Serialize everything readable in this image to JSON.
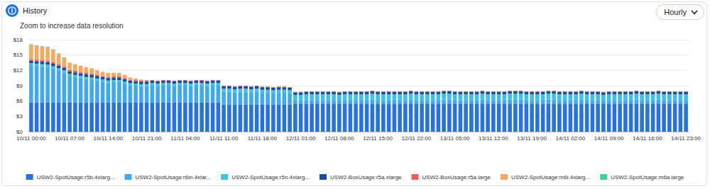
{
  "chart_data": {
    "type": "bar",
    "title": "History",
    "subtitle": "Zoom to increase data resolution",
    "annotations": [
      "Hourly"
    ],
    "stacked": true,
    "grid": true,
    "legend": "bottom",
    "ylim": [
      0,
      18
    ],
    "yticks": [
      {
        "value": 0,
        "label": "$0"
      },
      {
        "value": 3,
        "label": "$3"
      },
      {
        "value": 6,
        "label": "$6"
      },
      {
        "value": 9,
        "label": "$9"
      },
      {
        "value": 12,
        "label": "$12"
      },
      {
        "value": 15,
        "label": "$15"
      },
      {
        "value": 18,
        "label": "$18"
      }
    ],
    "categories": [
      "10/11 00:00",
      null,
      null,
      null,
      null,
      null,
      null,
      "10/11 07:00",
      null,
      null,
      null,
      null,
      null,
      null,
      "10/11 14:00",
      null,
      null,
      null,
      null,
      null,
      null,
      "10/11 21:00",
      null,
      null,
      null,
      null,
      null,
      null,
      "11/11 04:00",
      null,
      null,
      null,
      null,
      null,
      null,
      "11/11 11:00",
      null,
      null,
      null,
      null,
      null,
      null,
      "11/11 18:00",
      null,
      null,
      null,
      null,
      null,
      null,
      "12/11 01:00",
      null,
      null,
      null,
      null,
      null,
      null,
      "12/11 08:00",
      null,
      null,
      null,
      null,
      null,
      null,
      "12/11 15:00",
      null,
      null,
      null,
      null,
      null,
      null,
      "12/11 22:00",
      null,
      null,
      null,
      null,
      null,
      null,
      "13/11 05:00",
      null,
      null,
      null,
      null,
      null,
      null,
      "13/11 12:00",
      null,
      null,
      null,
      null,
      null,
      null,
      "13/11 19:00",
      null,
      null,
      null,
      null,
      null,
      null,
      "14/11 02:00",
      null,
      null,
      null,
      null,
      null,
      null,
      "14/11 09:00",
      null,
      null,
      null,
      null,
      null,
      null,
      "14/11 16:00",
      null,
      null,
      null,
      null,
      null,
      null,
      "14/11 23:00"
    ],
    "series": [
      {
        "name": "USW2-SpotUsage:r5b.4xlarg...",
        "color": "#2673df",
        "values": [
          5.7,
          5.7,
          5.7,
          5.7,
          5.7,
          5.7,
          5.7,
          5.7,
          5.7,
          5.7,
          5.7,
          5.7,
          5.7,
          5.7,
          5.7,
          5.7,
          5.7,
          5.7,
          5.7,
          5.7,
          5.7,
          5.7,
          5.7,
          5.7,
          5.7,
          5.7,
          5.7,
          5.7,
          5.7,
          5.7,
          5.7,
          5.7,
          5.7,
          5.7,
          5.7,
          5.3,
          5.3,
          5.3,
          5.3,
          5.3,
          5.3,
          5.3,
          5.3,
          5.3,
          5.3,
          5.3,
          5.3,
          5.3,
          5.5,
          5.5,
          5.5,
          5.5,
          5.5,
          5.5,
          5.5,
          5.5,
          5.5,
          5.5,
          5.5,
          5.5,
          5.5,
          5.5,
          5.5,
          5.5,
          5.5,
          5.5,
          5.5,
          5.5,
          5.5,
          5.5,
          5.5,
          5.5,
          5.5,
          5.5,
          5.5,
          5.5,
          5.5,
          5.5,
          5.5,
          5.5,
          5.5,
          5.5,
          5.5,
          5.5,
          5.5,
          5.5,
          5.5,
          5.5,
          5.5,
          5.5,
          5.5,
          5.5,
          5.5,
          5.5,
          5.5,
          5.5,
          5.5,
          5.5,
          5.5,
          5.5,
          5.5,
          5.5,
          5.5,
          5.5,
          5.5,
          5.5,
          5.5,
          5.5,
          5.5,
          5.5,
          5.5,
          5.5,
          5.5,
          5.5,
          5.5,
          5.5,
          5.5,
          5.5,
          5.5,
          5.5
        ]
      },
      {
        "name": "USW2-SpotUsage:r6in.4xlar...",
        "color": "#3ea8f0",
        "values": [
          7.3,
          7.2,
          7.1,
          7.0,
          6.7,
          6.3,
          5.9,
          5.2,
          5.0,
          4.8,
          4.6,
          4.5,
          4.3,
          4.1,
          3.9,
          4.0,
          4.0,
          3.7,
          3.4,
          3.3,
          3.2,
          3.2,
          3.3,
          3.2,
          3.3,
          3.3,
          3.2,
          3.3,
          3.3,
          3.2,
          3.3,
          3.3,
          3.2,
          3.3,
          3.3,
          2.5,
          2.5,
          2.4,
          2.5,
          2.5,
          2.4,
          2.5,
          2.3,
          2.3,
          2.2,
          2.3,
          2.3,
          2.2,
          0.6,
          0.6,
          0.7,
          0.7,
          0.7,
          0.7,
          0.7,
          0.7,
          0.6,
          0.7,
          0.7,
          0.7,
          0.7,
          0.7,
          0.8,
          0.7,
          0.7,
          0.7,
          0.7,
          0.7,
          0.7,
          0.8,
          0.7,
          0.7,
          0.7,
          0.7,
          0.7,
          0.8,
          0.8,
          0.7,
          0.7,
          0.7,
          0.7,
          0.7,
          0.8,
          0.7,
          0.7,
          0.7,
          0.7,
          0.8,
          0.8,
          0.8,
          0.7,
          0.7,
          0.7,
          0.7,
          0.8,
          0.8,
          0.7,
          0.7,
          0.7,
          0.7,
          0.8,
          0.7,
          0.7,
          0.7,
          0.6,
          0.7,
          0.7,
          0.7,
          0.7,
          0.7,
          0.8,
          0.7,
          0.7,
          0.7,
          0.8,
          0.7,
          0.7,
          0.7,
          0.7,
          0.7
        ]
      },
      {
        "name": "USW2-SpotUsage:r5n.4xlarg...",
        "color": "#3cc3e4",
        "values": [
          0.4,
          0.4,
          0.4,
          0.4,
          0.4,
          0.4,
          0.4,
          0.4,
          0.4,
          0.4,
          0.4,
          0.4,
          0.4,
          0.4,
          0.4,
          0.4,
          0.4,
          0.4,
          0.4,
          0.4,
          0.4,
          0.4,
          0.5,
          0.5,
          0.5,
          0.5,
          0.5,
          0.5,
          0.5,
          0.5,
          0.5,
          0.5,
          0.5,
          0.5,
          0.5,
          0.6,
          0.6,
          0.6,
          0.6,
          0.6,
          0.6,
          0.6,
          0.6,
          0.6,
          0.6,
          0.6,
          0.6,
          0.6,
          1.1,
          1.1,
          1.1,
          1.1,
          1.1,
          1.1,
          1.1,
          1.1,
          1.1,
          1.1,
          1.1,
          1.1,
          1.1,
          1.1,
          1.1,
          1.1,
          1.1,
          1.1,
          1.1,
          1.1,
          1.1,
          1.1,
          1.1,
          1.1,
          1.1,
          1.1,
          1.1,
          1.1,
          1.1,
          1.1,
          1.1,
          1.1,
          1.1,
          1.1,
          1.1,
          1.1,
          1.1,
          1.1,
          1.1,
          1.1,
          1.1,
          1.1,
          1.1,
          1.1,
          1.1,
          1.1,
          1.1,
          1.1,
          1.1,
          1.1,
          1.1,
          1.1,
          1.1,
          1.1,
          1.1,
          1.1,
          1.1,
          1.1,
          1.1,
          1.1,
          1.1,
          1.1,
          1.1,
          1.1,
          1.1,
          1.1,
          1.1,
          1.1,
          1.1,
          1.1,
          1.1,
          1.1
        ]
      },
      {
        "name": "USW2-BoxUsage:r5a.xlarge",
        "color": "#1a4b9e",
        "values": [
          0.5,
          0.5,
          0.5,
          0.5,
          0.5,
          0.5,
          0.5,
          0.5,
          0.5,
          0.5,
          0.5,
          0.5,
          0.5,
          0.5,
          0.5,
          0.5,
          0.5,
          0.5,
          0.5,
          0.5,
          0.5,
          0.5,
          0.5,
          0.5,
          0.5,
          0.5,
          0.5,
          0.5,
          0.5,
          0.5,
          0.5,
          0.5,
          0.5,
          0.5,
          0.5,
          0.5,
          0.5,
          0.5,
          0.5,
          0.5,
          0.5,
          0.5,
          0.5,
          0.5,
          0.5,
          0.5,
          0.5,
          0.5,
          0.5,
          0.5,
          0.5,
          0.5,
          0.5,
          0.5,
          0.5,
          0.5,
          0.5,
          0.5,
          0.5,
          0.5,
          0.5,
          0.5,
          0.5,
          0.5,
          0.5,
          0.5,
          0.5,
          0.5,
          0.5,
          0.5,
          0.5,
          0.5,
          0.5,
          0.5,
          0.5,
          0.5,
          0.5,
          0.5,
          0.5,
          0.5,
          0.5,
          0.5,
          0.5,
          0.5,
          0.5,
          0.5,
          0.5,
          0.5,
          0.5,
          0.5,
          0.5,
          0.5,
          0.5,
          0.5,
          0.5,
          0.5,
          0.5,
          0.5,
          0.5,
          0.5,
          0.5,
          0.5,
          0.5,
          0.5,
          0.5,
          0.5,
          0.5,
          0.5,
          0.5,
          0.5,
          0.5,
          0.5,
          0.5,
          0.5,
          0.5,
          0.5,
          0.5,
          0.5,
          0.5,
          0.5
        ]
      },
      {
        "name": "USW2-BoxUsage:r5a.large",
        "color": "#ef5b5b",
        "values": [
          0.3,
          0.3,
          0.3,
          0.3,
          0.3,
          0.3,
          0.3,
          0.3,
          0.3,
          0.3,
          0.3,
          0.3,
          0.2,
          0.2,
          0.2,
          0.2,
          0.2,
          0.2,
          0.2,
          0.2,
          0.2,
          0.2,
          0.1,
          0.1,
          0.1,
          0.1,
          0.1,
          0.1,
          0.1,
          0.1,
          0.1,
          0.1,
          0.1,
          0.1,
          0.1,
          0.1,
          0.1,
          0.1,
          0.1,
          0.1,
          0.1,
          0.1,
          0.1,
          0.1,
          0.1,
          0.1,
          0.1,
          0.1,
          0.1,
          0.1,
          0.1,
          0.1,
          0.1,
          0.1,
          0.1,
          0.1,
          0.1,
          0.1,
          0.1,
          0.1,
          0.1,
          0.1,
          0.1,
          0.1,
          0.1,
          0.1,
          0.1,
          0.1,
          0.1,
          0.1,
          0.1,
          0.1,
          0.1,
          0.1,
          0.1,
          0.1,
          0.1,
          0.1,
          0.1,
          0.1,
          0.1,
          0.1,
          0.1,
          0.1,
          0.1,
          0.1,
          0.1,
          0.1,
          0.1,
          0.1,
          0.1,
          0.1,
          0.1,
          0.1,
          0.1,
          0.1,
          0.1,
          0.1,
          0.1,
          0.1,
          0.1,
          0.1,
          0.1,
          0.1,
          0.1,
          0.1,
          0.1,
          0.1,
          0.1,
          0.1,
          0.1,
          0.1,
          0.1,
          0.1,
          0.1,
          0.1,
          0.1,
          0.1,
          0.1,
          0.1
        ]
      },
      {
        "name": "USW2-SpotUsage:m6i.4xlarg...",
        "color": "#f4a95e",
        "values": [
          2.8,
          2.7,
          2.6,
          2.6,
          2.4,
          2.0,
          1.6,
          1.4,
          1.3,
          1.2,
          1.1,
          1.0,
          0.9,
          0.8,
          0.8,
          0.7,
          0.7,
          0.6,
          0.4,
          0.3,
          0.2,
          0.1,
          0,
          0,
          0,
          0,
          0,
          0,
          0,
          0,
          0,
          0,
          0,
          0,
          0,
          0,
          0,
          0,
          0,
          0,
          0,
          0,
          0.1,
          0.1,
          0,
          0.1,
          0.1,
          0,
          0,
          0,
          0,
          0,
          0,
          0,
          0,
          0,
          0,
          0,
          0,
          0,
          0,
          0,
          0,
          0,
          0,
          0,
          0,
          0,
          0,
          0,
          0,
          0,
          0,
          0,
          0,
          0,
          0,
          0,
          0,
          0,
          0,
          0,
          0,
          0,
          0,
          0,
          0,
          0,
          0,
          0,
          0,
          0,
          0,
          0,
          0,
          0,
          0,
          0,
          0,
          0,
          0,
          0,
          0,
          0,
          0,
          0,
          0,
          0,
          0,
          0,
          0,
          0,
          0,
          0,
          0,
          0,
          0,
          0,
          0,
          0
        ]
      },
      {
        "name": "USW2-SpotUsage:m6a.large",
        "color": "#3dcf9f",
        "values": [
          0.1,
          0.1,
          0.1,
          0.1,
          0.1,
          0.1,
          0.1,
          0,
          0,
          0,
          0,
          0,
          0,
          0,
          0,
          0,
          0,
          0,
          0,
          0,
          0,
          0,
          0,
          0,
          0,
          0,
          0,
          0,
          0,
          0,
          0,
          0,
          0,
          0,
          0,
          0,
          0,
          0,
          0,
          0,
          0,
          0,
          0,
          0,
          0,
          0,
          0,
          0,
          0,
          0,
          0,
          0,
          0,
          0,
          0,
          0,
          0,
          0,
          0,
          0,
          0,
          0,
          0,
          0,
          0,
          0,
          0,
          0,
          0,
          0,
          0,
          0,
          0,
          0,
          0,
          0,
          0,
          0,
          0,
          0,
          0,
          0,
          0,
          0,
          0,
          0,
          0,
          0,
          0,
          0,
          0,
          0,
          0,
          0,
          0,
          0,
          0,
          0,
          0,
          0,
          0,
          0,
          0,
          0,
          0,
          0,
          0,
          0,
          0,
          0,
          0,
          0,
          0,
          0,
          0,
          0,
          0,
          0,
          0,
          0
        ]
      }
    ]
  }
}
